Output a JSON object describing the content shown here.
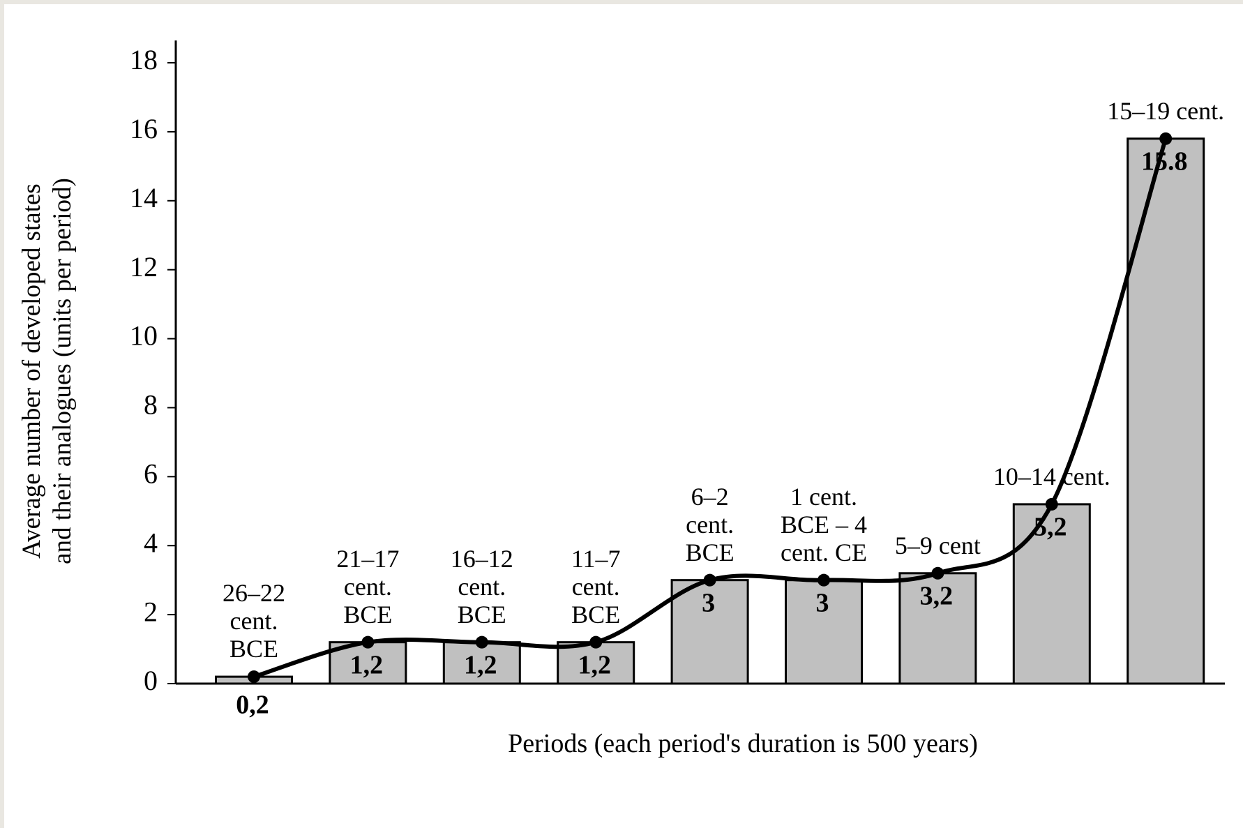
{
  "chart_data": {
    "type": "bar",
    "x_label": "Periods (each period's duration is 500 years)",
    "y_label": "Average number of developed states\nand their analogues (units per period)",
    "categories": [
      "26–22\ncent.\nBCE",
      "21–17\ncent.\nBCE",
      "16–12\ncent.\nBCE",
      "11–7\ncent.\nBCE",
      "6–2\ncent.\nBCE",
      "1 cent.\nBCE – 4\ncent. CE",
      "5–9 cent",
      "10–14 cent.",
      "15–19 cent."
    ],
    "values": [
      0.2,
      1.2,
      1.2,
      1.2,
      3,
      3,
      3.2,
      5.2,
      15.8
    ],
    "value_labels": [
      "0,2",
      "1,2",
      "1,2",
      "1,2",
      "3",
      "3",
      "3,2",
      "5,2",
      "15.8"
    ],
    "color": "#c0c0c0",
    "smooth_line": true,
    "ylim": [
      0,
      18
    ],
    "yticks": [
      0,
      2,
      4,
      6,
      8,
      10,
      12,
      14,
      16,
      18
    ]
  }
}
